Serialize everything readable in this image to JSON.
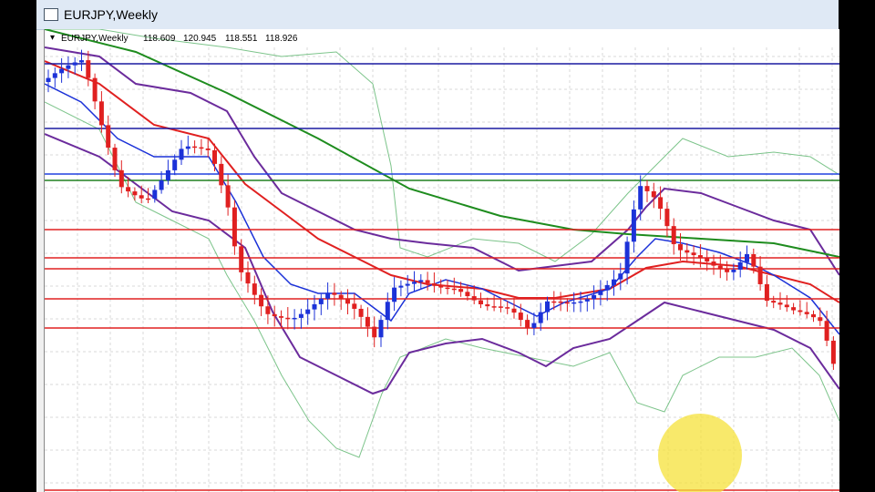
{
  "window": {
    "title": "EURJPY,Weekly"
  },
  "chart_header": {
    "symbol": "EURJPY,Weekly",
    "open": "118.609",
    "high": "120.945",
    "low": "118.551",
    "close": "118.926"
  }
}
